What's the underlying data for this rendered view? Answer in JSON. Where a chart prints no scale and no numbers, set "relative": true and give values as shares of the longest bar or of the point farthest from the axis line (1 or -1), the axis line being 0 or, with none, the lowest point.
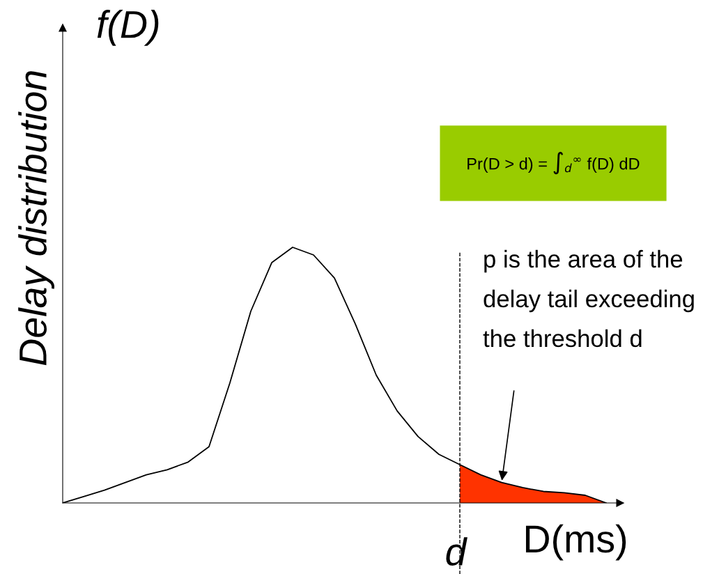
{
  "chart_data": {
    "type": "line",
    "relative": true,
    "xlabel": "D(ms)",
    "ylabel": "Delay distribution",
    "categories": [
      null,
      null,
      null,
      null,
      null,
      null,
      null,
      null,
      null,
      null,
      null,
      null,
      null,
      null,
      null,
      null,
      null,
      null,
      null,
      null,
      null,
      null,
      null,
      null,
      null,
      null,
      null
    ],
    "series": [
      {
        "color": "#000000",
        "values": [
          0,
          0.025,
          0.05,
          0.08,
          0.11,
          0.13,
          0.16,
          0.22,
          0.47,
          0.75,
          0.94,
          1.0,
          0.97,
          0.88,
          0.7,
          0.5,
          0.36,
          0.26,
          0.19,
          0.15,
          0.11,
          0.08,
          0.06,
          0.045,
          0.04,
          0.03,
          0
        ]
      },
      {
        "type": "area",
        "color": "#ff3300",
        "values": [
          null,
          null,
          null,
          null,
          null,
          null,
          null,
          null,
          null,
          null,
          null,
          null,
          null,
          null,
          null,
          null,
          null,
          null,
          null,
          0.15,
          0.11,
          0.08,
          0.06,
          0.045,
          0.04,
          0.03,
          0
        ]
      }
    ],
    "annotations": [
      "f(D)",
      "Pr(D > d) = ∫$_{d}$$^{∞}$ f(D) dD",
      "p is the area of the delay tail exceeding the threshold d",
      "d"
    ],
    "legend": false,
    "marker": "none"
  }
}
